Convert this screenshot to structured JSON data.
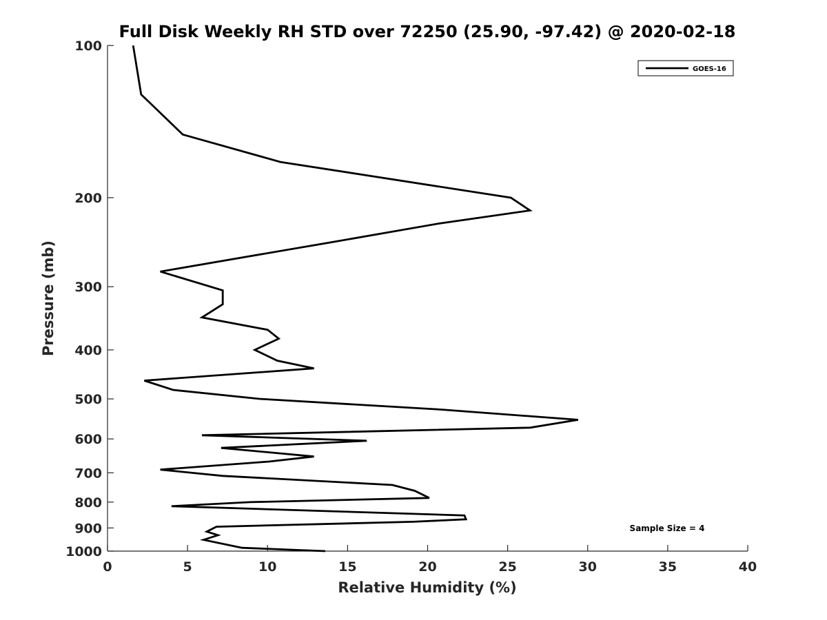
{
  "chart_data": {
    "type": "line",
    "title": "Full Disk Weekly RH STD over 72250 (25.90, -97.42) @ 2020-02-18",
    "xlabel": "Relative Humidity (%)",
    "ylabel": "Pressure (mb)",
    "xlim": [
      0,
      40
    ],
    "ylim": [
      1000,
      100
    ],
    "yscale": "log",
    "y_inverted": true,
    "x_ticks": [
      0,
      5,
      10,
      15,
      20,
      25,
      30,
      35,
      40
    ],
    "y_ticks": [
      100,
      200,
      300,
      400,
      500,
      600,
      700,
      800,
      900,
      1000
    ],
    "grid": false,
    "legend": {
      "position": "top-right",
      "entries": [
        "GOES-16"
      ]
    },
    "annotation": "Sample Size = 4",
    "series": [
      {
        "name": "GOES-16",
        "color": "#000000",
        "points": [
          [
            1.6,
            100
          ],
          [
            2.1,
            125
          ],
          [
            4.7,
            150
          ],
          [
            10.8,
            170
          ],
          [
            25.2,
            200
          ],
          [
            26.4,
            212
          ],
          [
            20.7,
            225
          ],
          [
            14.0,
            245
          ],
          [
            3.3,
            280
          ],
          [
            7.2,
            305
          ],
          [
            7.2,
            325
          ],
          [
            5.9,
            345
          ],
          [
            10.0,
            365
          ],
          [
            10.7,
            380
          ],
          [
            9.2,
            400
          ],
          [
            10.6,
            420
          ],
          [
            12.9,
            435
          ],
          [
            2.3,
            460
          ],
          [
            4.1,
            480
          ],
          [
            9.5,
            500
          ],
          [
            20.9,
            525
          ],
          [
            29.4,
            550
          ],
          [
            26.4,
            570
          ],
          [
            5.9,
            590
          ],
          [
            16.2,
            605
          ],
          [
            7.1,
            625
          ],
          [
            12.9,
            650
          ],
          [
            10.1,
            665
          ],
          [
            3.3,
            690
          ],
          [
            7.2,
            710
          ],
          [
            17.8,
            740
          ],
          [
            19.2,
            760
          ],
          [
            20.1,
            785
          ],
          [
            8.9,
            800
          ],
          [
            4.0,
            815
          ],
          [
            22.3,
            850
          ],
          [
            22.4,
            865
          ],
          [
            19.1,
            875
          ],
          [
            6.8,
            895
          ],
          [
            6.2,
            915
          ],
          [
            6.9,
            930
          ],
          [
            6.0,
            950
          ],
          [
            8.4,
            985
          ],
          [
            13.6,
            1000
          ]
        ]
      }
    ]
  }
}
